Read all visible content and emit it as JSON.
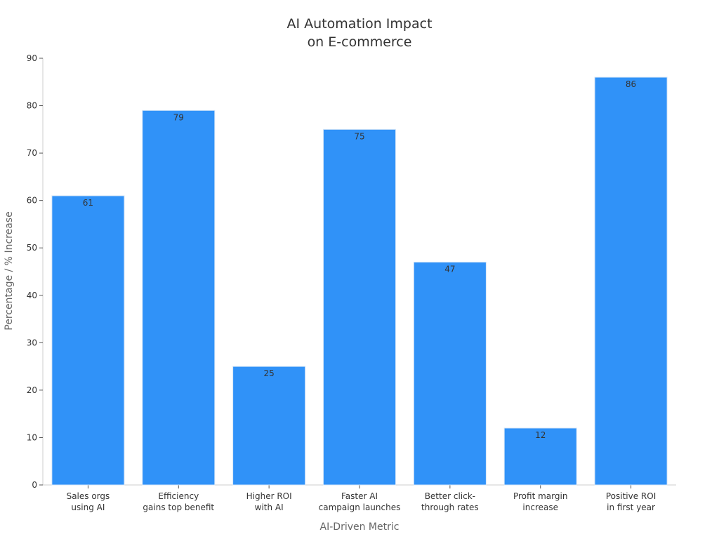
{
  "chart_data": {
    "type": "bar",
    "title_lines": [
      "AI Automation Impact",
      "on E-commerce"
    ],
    "xlabel": "AI-Driven Metric",
    "ylabel": "Percentage / % Increase",
    "categories": [
      [
        "Sales orgs",
        "using AI"
      ],
      [
        "Efficiency",
        "gains top benefit"
      ],
      [
        "Higher ROI",
        "with AI"
      ],
      [
        "Faster AI",
        "campaign launches"
      ],
      [
        "Better click-",
        "through rates"
      ],
      [
        "Profit margin",
        "increase"
      ],
      [
        "Positive ROI",
        "in first year"
      ]
    ],
    "values": [
      61,
      79,
      25,
      75,
      47,
      12,
      86
    ],
    "ylim": [
      0,
      90
    ],
    "yticks": [
      0,
      10,
      20,
      30,
      40,
      50,
      60,
      70,
      80,
      90
    ],
    "grid": false,
    "legend": "none",
    "bar_color": "#3092f8",
    "bar_edge_color": "#d6e6f7"
  }
}
